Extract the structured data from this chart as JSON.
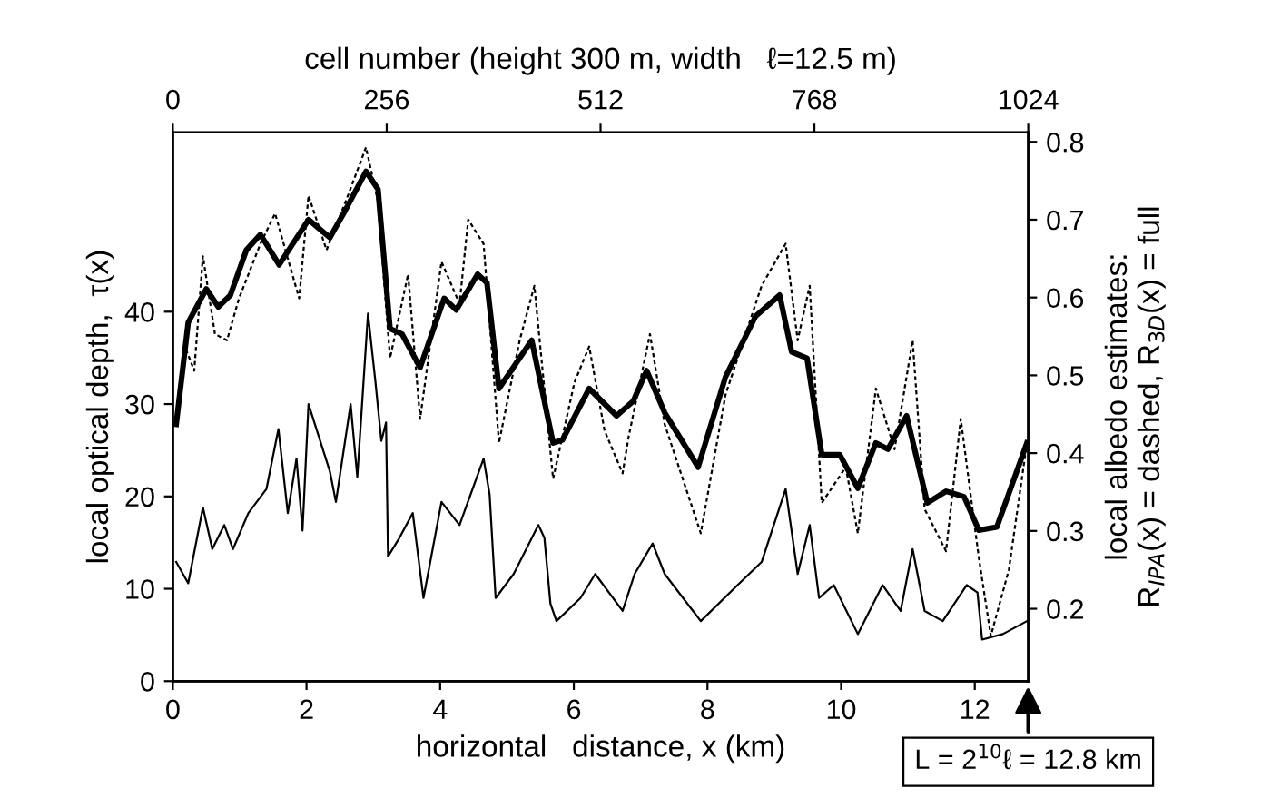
{
  "chart_data": {
    "type": "line",
    "xlabel": "horizontal   distance, x (km)",
    "ylabel": "local optical depth,  τ(x)",
    "y2label": "local albedo estimates:\nR$_{IPA}$(x) = dashed, R$_{3D}$(x) = full",
    "x2label": "cell number (height 300 m, width   ℓ=12.5 m)",
    "xlim": [
      0,
      12.8
    ],
    "xticks": [
      0,
      2,
      4,
      6,
      8,
      10,
      12
    ],
    "x2lim": [
      0,
      1024
    ],
    "x2ticks": [
      0,
      256,
      512,
      768,
      1024
    ],
    "ylim": [
      0,
      59.4
    ],
    "yticks": [
      0,
      10,
      20,
      30,
      40
    ],
    "y2lim": [
      0.107,
      0.812
    ],
    "y2ticks": [
      0.2,
      0.3,
      0.4,
      0.5,
      0.6,
      0.7,
      0.8
    ],
    "grid": false,
    "legend": false,
    "marker": "none",
    "annotations": [
      "L = 2$^{10}$ℓ = 12.8 km"
    ],
    "series": [
      {
        "color": "#000000",
        "line_style": "solid",
        "x": [
          0.05,
          0.23,
          0.45,
          0.59,
          0.77,
          0.9,
          1.13,
          1.4,
          1.58,
          1.72,
          1.85,
          1.94,
          2.03,
          2.35,
          2.44,
          2.66,
          2.76,
          2.92,
          3.03,
          3.12,
          3.19,
          3.22,
          3.39,
          3.59,
          3.75,
          4.02,
          4.29,
          4.65,
          4.74,
          4.83,
          5.1,
          5.47,
          5.56,
          5.65,
          5.74,
          6.1,
          6.32,
          6.73,
          6.91,
          7.18,
          7.36,
          7.9,
          8.45,
          8.81,
          9.17,
          9.35,
          9.53,
          9.67,
          9.89,
          10.25,
          10.62,
          10.89,
          11.07,
          11.25,
          11.52,
          11.88,
          12.04,
          12.11,
          12.42,
          12.78
        ],
        "values": [
          12.9,
          10.6,
          18.8,
          14.3,
          16.9,
          14.3,
          18.2,
          20.8,
          27.3,
          18.2,
          24.1,
          16.3,
          30,
          22.7,
          19.4,
          30,
          22.1,
          39.8,
          32.5,
          26,
          28,
          13.5,
          15.5,
          18.2,
          9,
          19.4,
          16.9,
          24.1,
          20.2,
          9,
          11.6,
          16.9,
          15.5,
          8.4,
          6.5,
          9,
          11.6,
          7.6,
          11.6,
          14.9,
          11.6,
          6.5,
          10.4,
          12.9,
          20.8,
          11.6,
          16.9,
          9,
          10.4,
          5.1,
          10.4,
          7.6,
          14.3,
          7.6,
          6.5,
          10.4,
          9.6,
          4.5,
          5.1,
          6.5
        ]
      },
      {
        "color": "#000000",
        "line_style": "dashed",
        "axis": "y2",
        "x": [
          0.05,
          0.18,
          0.32,
          0.45,
          0.63,
          0.81,
          0.99,
          1.31,
          1.53,
          1.76,
          1.89,
          2.03,
          2.3,
          2.62,
          2.89,
          3.07,
          3.25,
          3.52,
          3.7,
          4.02,
          4.29,
          4.42,
          4.65,
          4.88,
          5.19,
          5.41,
          5.69,
          6.01,
          6.23,
          6.46,
          6.73,
          6.82,
          7.14,
          7.36,
          7.9,
          8.27,
          8.81,
          9.17,
          9.35,
          9.53,
          9.71,
          10.07,
          10.25,
          10.52,
          10.8,
          11.07,
          11.25,
          11.57,
          11.79,
          12.06,
          12.24,
          12.51,
          12.78
        ],
        "values": [
          0.442,
          0.537,
          0.506,
          0.653,
          0.553,
          0.545,
          0.599,
          0.669,
          0.708,
          0.638,
          0.599,
          0.731,
          0.661,
          0.731,
          0.793,
          0.723,
          0.522,
          0.63,
          0.444,
          0.646,
          0.592,
          0.7,
          0.669,
          0.413,
          0.545,
          0.615,
          0.367,
          0.491,
          0.537,
          0.429,
          0.374,
          0.421,
          0.553,
          0.437,
          0.297,
          0.475,
          0.615,
          0.669,
          0.545,
          0.615,
          0.336,
          0.382,
          0.297,
          0.483,
          0.405,
          0.545,
          0.328,
          0.274,
          0.444,
          0.266,
          0.165,
          0.25,
          0.413
        ]
      },
      {
        "color": "#000000",
        "line_style": "solid",
        "axis": "y2",
        "x": [
          0.05,
          0.23,
          0.5,
          0.68,
          0.86,
          1.1,
          1.31,
          1.59,
          2.03,
          2.35,
          2.58,
          2.89,
          3.07,
          3.25,
          3.43,
          3.7,
          4.06,
          4.24,
          4.56,
          4.7,
          4.88,
          5.37,
          5.69,
          5.83,
          6.23,
          6.64,
          6.89,
          7.09,
          7.36,
          7.86,
          8.27,
          8.72,
          9.08,
          9.26,
          9.49,
          9.71,
          9.98,
          10.25,
          10.52,
          10.7,
          10.98,
          11.29,
          11.57,
          11.84,
          12.06,
          12.33,
          12.78
        ],
        "values": [
          0.437,
          0.568,
          0.611,
          0.588,
          0.603,
          0.661,
          0.681,
          0.642,
          0.7,
          0.677,
          0.712,
          0.762,
          0.739,
          0.56,
          0.553,
          0.51,
          0.599,
          0.584,
          0.63,
          0.619,
          0.483,
          0.545,
          0.413,
          0.417,
          0.483,
          0.448,
          0.467,
          0.506,
          0.452,
          0.382,
          0.498,
          0.576,
          0.603,
          0.53,
          0.522,
          0.398,
          0.398,
          0.355,
          0.413,
          0.405,
          0.448,
          0.336,
          0.351,
          0.344,
          0.301,
          0.305,
          0.413
        ]
      }
    ]
  }
}
